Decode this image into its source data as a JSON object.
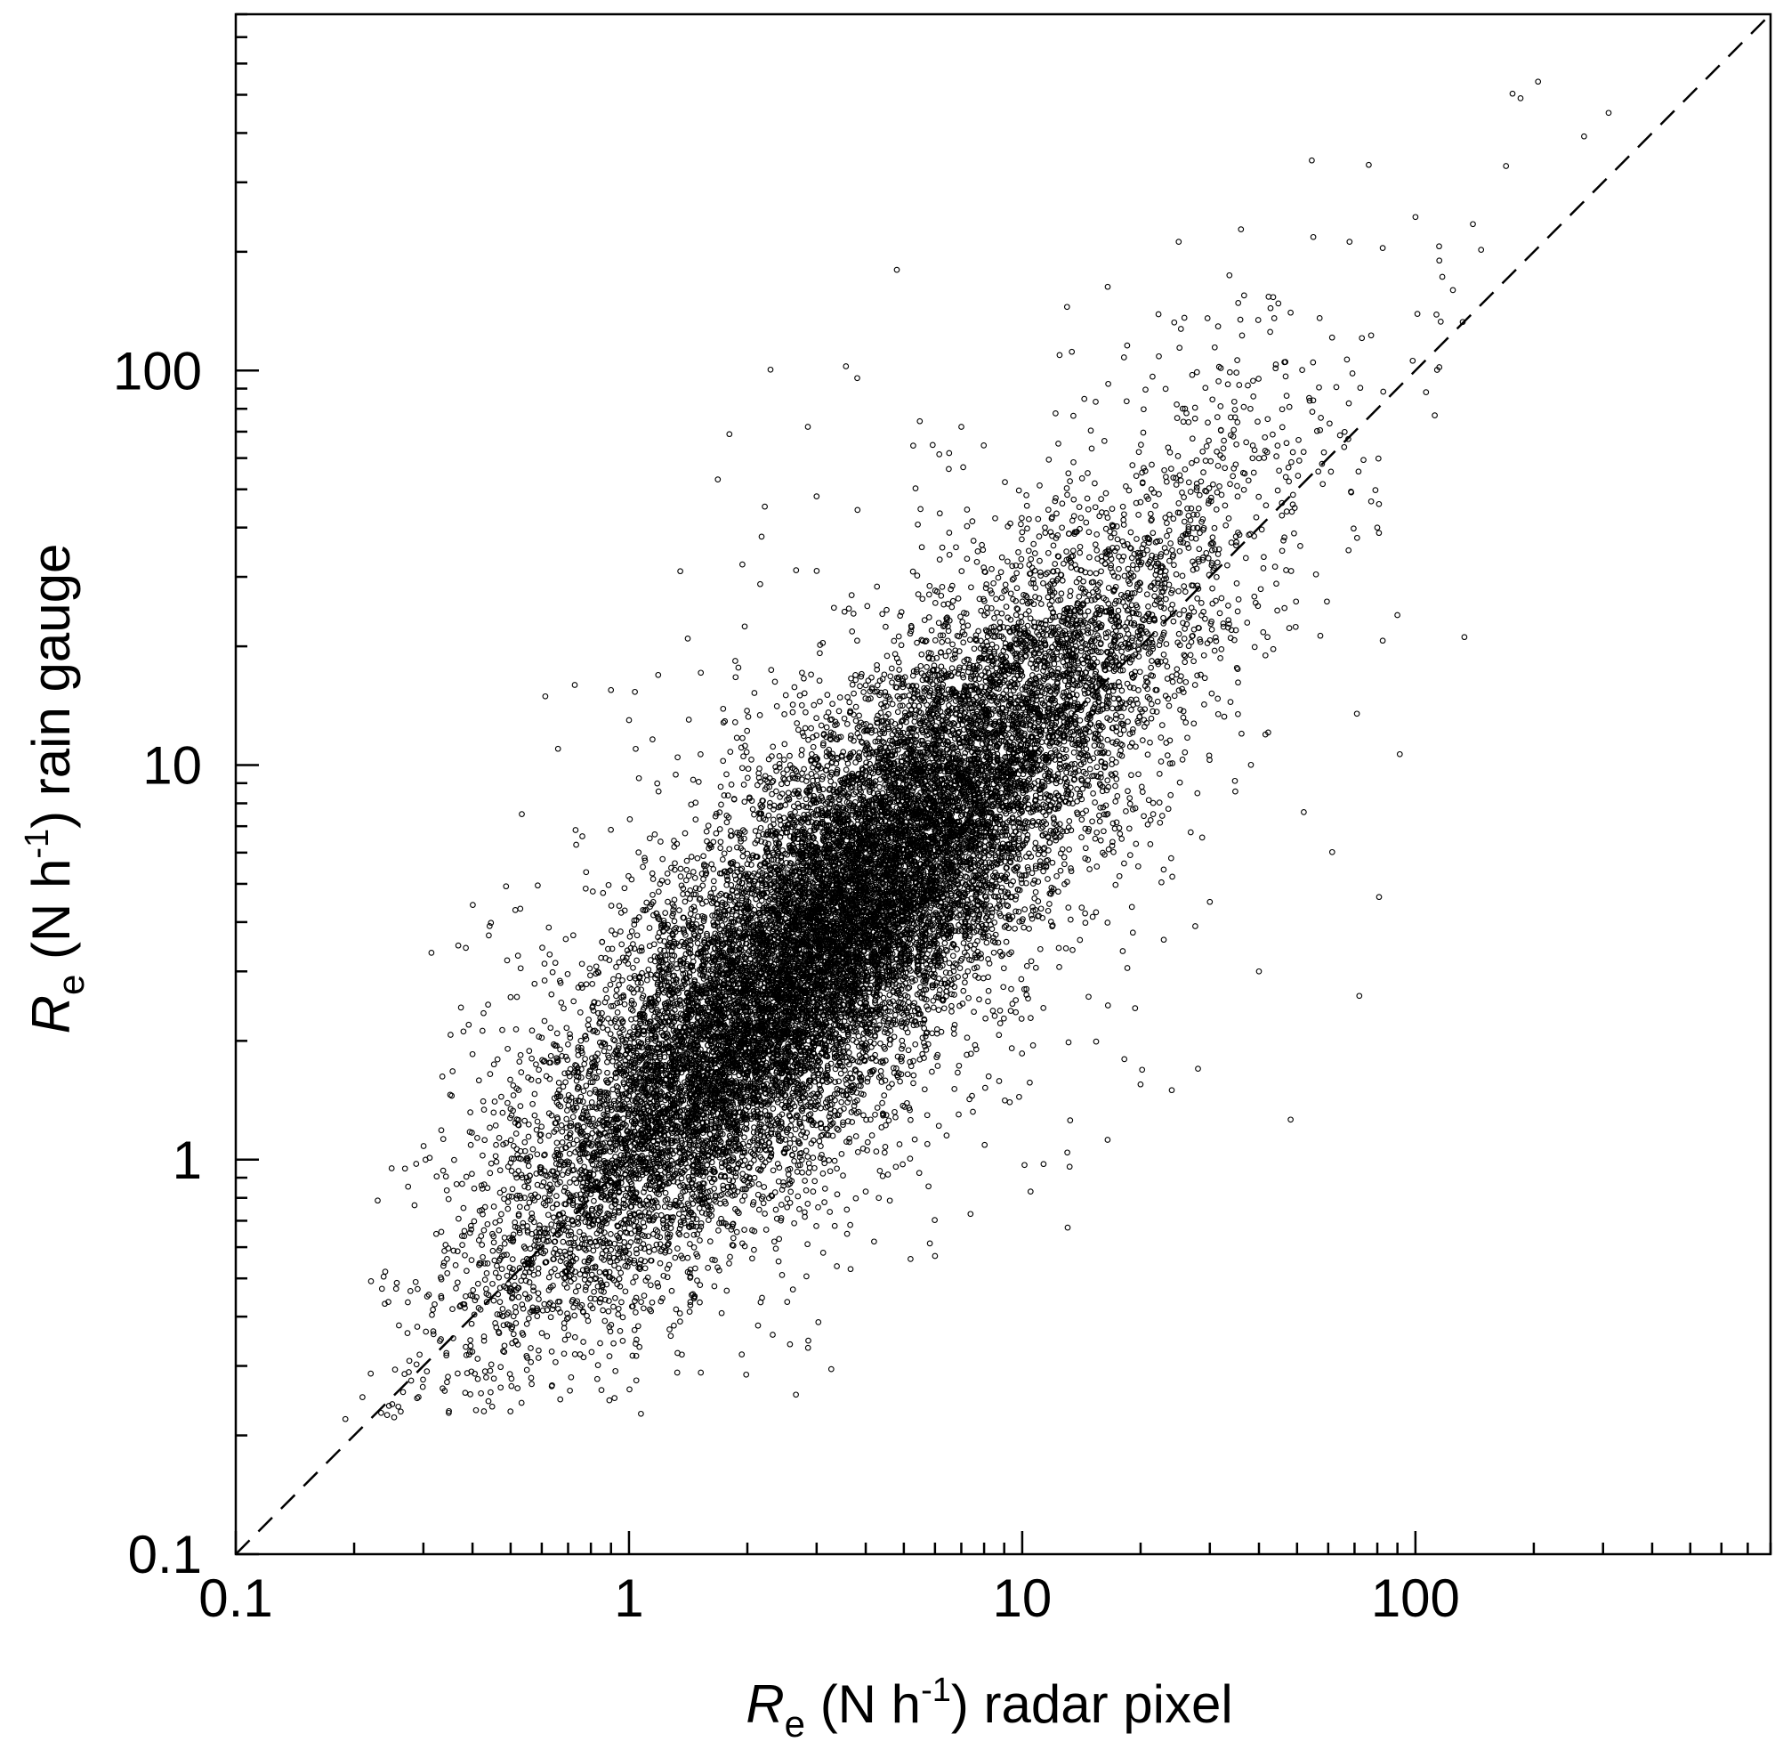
{
  "chart_data": {
    "type": "scatter",
    "xscale": "log",
    "yscale": "log",
    "xlim": [
      0.1,
      800
    ],
    "ylim": [
      0.1,
      800
    ],
    "xlabel": {
      "symbol": "R",
      "sub": "e",
      "pre": " (N h",
      "sup": "-1",
      "post": ") radar pixel"
    },
    "ylabel": {
      "symbol": "R",
      "sub": "e",
      "pre": " (N h",
      "sup": "-1",
      "post": ") rain gauge"
    },
    "major_ticks": [
      0.1,
      1,
      10,
      100
    ],
    "major_tick_labels": [
      "0.1",
      "1",
      "10",
      "100"
    ],
    "reference_line": {
      "style": "dashed",
      "x": [
        0.1,
        800
      ],
      "y": [
        0.1,
        800
      ]
    },
    "grid": false,
    "legend": "none",
    "marker": "open-circle",
    "color": "#000000",
    "point_count_approx": 18000,
    "cloud_model": {
      "center": 3.0,
      "major_axis_sd_log10": 0.55,
      "minor_axis_sd_log10": 0.16,
      "slope": 1.15
    },
    "extreme_points": [
      {
        "x": 0.19,
        "y": 0.22
      },
      {
        "x": 0.21,
        "y": 0.25
      },
      {
        "x": 0.25,
        "y": 0.24
      },
      {
        "x": 0.24,
        "y": 0.52
      },
      {
        "x": 0.26,
        "y": 0.38
      },
      {
        "x": 0.29,
        "y": 0.47
      },
      {
        "x": 0.4,
        "y": 1.85
      },
      {
        "x": 0.44,
        "y": 3.7
      },
      {
        "x": 0.49,
        "y": 3.2
      },
      {
        "x": 0.66,
        "y": 11.0
      },
      {
        "x": 0.9,
        "y": 15.5
      },
      {
        "x": 1.0,
        "y": 13.0
      },
      {
        "x": 1.35,
        "y": 31.0
      },
      {
        "x": 2.45,
        "y": 0.51
      },
      {
        "x": 3.0,
        "y": 48.0
      },
      {
        "x": 2.85,
        "y": 72.0
      },
      {
        "x": 1.8,
        "y": 69.0
      },
      {
        "x": 4.8,
        "y": 180.0
      },
      {
        "x": 5.2,
        "y": 0.56
      },
      {
        "x": 7.0,
        "y": 72.0
      },
      {
        "x": 10.5,
        "y": 0.83
      },
      {
        "x": 13.0,
        "y": 145.0
      },
      {
        "x": 16.5,
        "y": 163.0
      },
      {
        "x": 25.0,
        "y": 212.0
      },
      {
        "x": 24.0,
        "y": 1.5
      },
      {
        "x": 28.0,
        "y": 1.7
      },
      {
        "x": 36.0,
        "y": 228.0
      },
      {
        "x": 55.0,
        "y": 218.0
      },
      {
        "x": 68.0,
        "y": 212.0
      },
      {
        "x": 71.0,
        "y": 13.5
      },
      {
        "x": 72.0,
        "y": 2.6
      },
      {
        "x": 90.0,
        "y": 24.0
      },
      {
        "x": 100.0,
        "y": 245.0
      },
      {
        "x": 115.0,
        "y": 190.0
      },
      {
        "x": 140.0,
        "y": 235.0
      },
      {
        "x": 170.0,
        "y": 330.0
      },
      {
        "x": 185.0,
        "y": 490.0
      },
      {
        "x": 205.0,
        "y": 540.0
      },
      {
        "x": 310.0,
        "y": 450.0
      },
      {
        "x": 115.0,
        "y": 102.0
      },
      {
        "x": 112.0,
        "y": 77.0
      },
      {
        "x": 80.0,
        "y": 40.0
      },
      {
        "x": 52.0,
        "y": 7.6
      },
      {
        "x": 40.0,
        "y": 3.0
      },
      {
        "x": 30.0,
        "y": 4.5
      },
      {
        "x": 6.0,
        "y": 0.57
      },
      {
        "x": 4.2,
        "y": 0.62
      }
    ]
  }
}
